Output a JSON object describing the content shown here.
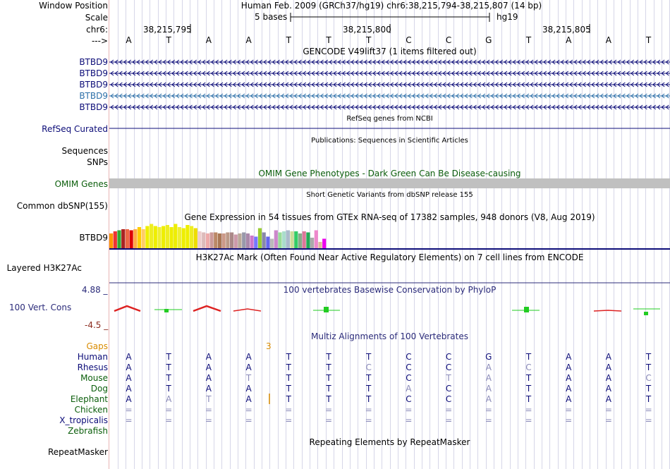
{
  "ruler": {
    "window_position_label": "Window Position",
    "window_position_value": "Human Feb. 2009 (GRCh37/hg19)   chr6:38,215,794-38,215,807 (14 bp)",
    "scale_label": "Scale",
    "scale_value": "5 bases",
    "scale_assembly": "hg19",
    "chrom_label": "chr6:",
    "positions": [
      "38,215,795",
      "38,215,800",
      "38,215,805"
    ],
    "strand_label": "--->",
    "bases": [
      "A",
      "T",
      "A",
      "A",
      "T",
      "T",
      "T",
      "C",
      "C",
      "G",
      "T",
      "A",
      "A",
      "T"
    ]
  },
  "tracks": {
    "gencode": {
      "title": "GENCODE V49lift37 (1 items filtered out)",
      "genes": [
        "BTBD9",
        "BTBD9",
        "BTBD9",
        "BTBD9",
        "BTBD9"
      ],
      "colors": [
        "#0c0c78",
        "#0c0c78",
        "#0c0c78",
        "#2c6fa8",
        "#0c0c78"
      ]
    },
    "refseq": {
      "title": "RefSeq genes from NCBI",
      "label": "RefSeq Curated"
    },
    "publications": {
      "title": "Publications: Sequences in Scientific Articles",
      "label1": "Sequences",
      "label2": "SNPs"
    },
    "omim": {
      "title": "OMIM Gene Phenotypes - Dark Green Can Be Disease-causing",
      "label": "OMIM Genes"
    },
    "dbsnp": {
      "title": "Short Genetic Variants from dbSNP release 155",
      "label": "Common dbSNP(155)"
    },
    "gtex": {
      "title": "Gene Expression in 54 tissues from GTEx RNA-seq of 17382 samples, 948 donors (V8, Aug 2019)",
      "label": "BTBD9",
      "values": [
        0.7,
        0.8,
        0.85,
        0.9,
        0.9,
        0.85,
        0.9,
        1.0,
        0.9,
        1.05,
        1.15,
        1.05,
        1.0,
        1.05,
        1.1,
        1.0,
        1.15,
        1.0,
        0.95,
        1.1,
        1.05,
        0.95,
        0.8,
        0.75,
        0.7,
        0.75,
        0.75,
        0.7,
        0.7,
        0.75,
        0.75,
        0.65,
        0.7,
        0.75,
        0.7,
        0.6,
        0.55,
        0.95,
        0.75,
        0.55,
        0.45,
        0.85,
        0.75,
        0.8,
        0.85,
        0.8,
        0.8,
        0.7,
        0.8,
        0.75,
        0.5,
        0.85,
        0.3,
        0.45
      ],
      "colors": [
        "#ff9900",
        "#ee3333",
        "#33aa33",
        "#aa2222",
        "#ee6644",
        "#dd0000",
        "#ffaa44",
        "#ffcc00",
        "#ffcc66",
        "#eeee00",
        "#eeee22",
        "#eeee00",
        "#eeee33",
        "#eeee00",
        "#eeee22",
        "#eeee00",
        "#eeee00",
        "#eeee33",
        "#eeee00",
        "#eeee00",
        "#eeee22",
        "#eedd00",
        "#eecccc",
        "#ddbbbb",
        "#eeaaaa",
        "#cc9999",
        "#bb8866",
        "#aa7755",
        "#cc9988",
        "#bb9988",
        "#aa8888",
        "#cc99aa",
        "#bbaa99",
        "#9999aa",
        "#aa88aa",
        "#cc77cc",
        "#7777ff",
        "#99cc33",
        "#8888aa",
        "#6666ee",
        "#bbbbbb",
        "#cc88cc",
        "#99dd99",
        "#aaddcc",
        "#aabbcc",
        "#ccdd99",
        "#33cc66",
        "#88aa88",
        "#dd7799",
        "#22aa55",
        "#aaaaaa",
        "#ee88cc",
        "#ddbb99",
        "#ee00ee"
      ]
    },
    "h3k27ac": {
      "title": "H3K27Ac Mark (Often Found Near Active Regulatory Elements) on 7 cell lines from ENCODE",
      "label": "Layered H3K27Ac"
    },
    "phylop": {
      "title": "100 vertebrates Basewise Conservation by PhyloP",
      "label": "100 Vert. Cons",
      "max": "4.88 _",
      "min": "-4.5 _"
    },
    "multiz": {
      "title": "Multiz Alignments of 100 Vertebrates",
      "gaps_label": "Gaps",
      "gap_count": "3",
      "species": [
        {
          "name": "Human",
          "color": "#0c0c78",
          "bases": [
            "A",
            "T",
            "A",
            "A",
            "T",
            "T",
            "T",
            "C",
            "C",
            "G",
            "T",
            "A",
            "A",
            "T"
          ],
          "faint": []
        },
        {
          "name": "Rhesus",
          "color": "#0c0c78",
          "bases": [
            "A",
            "T",
            "A",
            "A",
            "T",
            "T",
            "C",
            "C",
            "C",
            "A",
            "C",
            "A",
            "A",
            "T"
          ],
          "faint": [
            6,
            9,
            10
          ]
        },
        {
          "name": "Mouse",
          "color": "#0b5e0b",
          "bases": [
            "A",
            "T",
            "A",
            "T",
            "T",
            "T",
            "T",
            "C",
            "T",
            "A",
            "T",
            "A",
            "A",
            "C"
          ],
          "faint": [
            3,
            8,
            9,
            13
          ]
        },
        {
          "name": "Dog",
          "color": "#0b5e0b",
          "bases": [
            "A",
            "T",
            "A",
            "A",
            "T",
            "T",
            "T",
            "A",
            "C",
            "A",
            "T",
            "A",
            "A",
            "T"
          ],
          "faint": [
            7,
            9
          ]
        },
        {
          "name": "Elephant",
          "color": "#0b5e0b",
          "bases": [
            "A",
            "A",
            "T",
            "A",
            "T",
            "T",
            "T",
            "C",
            "C",
            "A",
            "T",
            "A",
            "A",
            "T"
          ],
          "faint": [
            1,
            2,
            9
          ]
        },
        {
          "name": "Chicken",
          "color": "#0b5e0b",
          "bases": [
            "=",
            "=",
            "=",
            "=",
            "=",
            "=",
            "=",
            "=",
            "=",
            "=",
            "=",
            "=",
            "=",
            "="
          ],
          "faint": [
            0,
            1,
            2,
            3,
            4,
            5,
            6,
            7,
            8,
            9,
            10,
            11,
            12,
            13
          ]
        },
        {
          "name": "X_tropicalis",
          "color": "#0c0c78",
          "bases": [
            "=",
            "=",
            "=",
            "=",
            "=",
            "=",
            "=",
            "=",
            "=",
            "=",
            "=",
            "=",
            "=",
            "="
          ],
          "faint": [
            0,
            1,
            2,
            3,
            4,
            5,
            6,
            7,
            8,
            9,
            10,
            11,
            12,
            13
          ]
        },
        {
          "name": "Zebrafish",
          "color": "#0b5e0b",
          "bases": [],
          "faint": []
        }
      ]
    },
    "repeatmasker": {
      "title": "Repeating Elements by RepeatMasker",
      "label": "RepeatMasker"
    }
  },
  "colors": {
    "navy": "#0c0c78",
    "green": "#0b5e0b",
    "orange": "#d98b00",
    "phylop_pos": "#22cc22",
    "phylop_neg": "#dd2222"
  }
}
